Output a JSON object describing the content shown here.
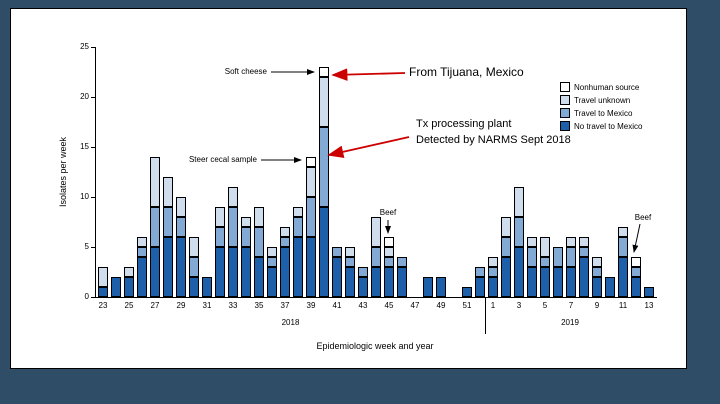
{
  "theme": {
    "outer_background": "#2f4d66",
    "slide_background": "#ffffff",
    "accent_red": "#cc0000",
    "axis_color": "#000000"
  },
  "chart_data": {
    "type": "bar",
    "stacked": true,
    "stack_order": "bottom-to-top",
    "title": "",
    "ylabel": "Isolates per week",
    "xlabel": "Epidemiologic week and year",
    "ylim": [
      0,
      25
    ],
    "yticks": [
      0,
      5,
      10,
      15,
      20,
      25
    ],
    "grid": false,
    "legend_position": "top-right",
    "categories": [
      "23",
      "24",
      "25",
      "26",
      "27",
      "28",
      "29",
      "30",
      "31",
      "32",
      "33",
      "34",
      "35",
      "36",
      "37",
      "38",
      "39",
      "40",
      "41",
      "42",
      "43",
      "44",
      "45",
      "46",
      "47",
      "48",
      "49",
      "50",
      "51",
      "52",
      "1",
      "2",
      "3",
      "4",
      "5",
      "6",
      "7",
      "8",
      "9",
      "10",
      "11",
      "12",
      "13"
    ],
    "year_groups": [
      {
        "label": "2018",
        "from": 0,
        "to": 29
      },
      {
        "label": "2019",
        "from": 30,
        "to": 42
      }
    ],
    "series": [
      {
        "name": "No travel to Mexico",
        "color": "#1d5fa9",
        "values": [
          1,
          2,
          2,
          4,
          5,
          6,
          6,
          2,
          2,
          5,
          5,
          5,
          4,
          3,
          5,
          6,
          6,
          9,
          4,
          3,
          2,
          3,
          3,
          3,
          0,
          2,
          2,
          0,
          1,
          2,
          2,
          4,
          5,
          3,
          3,
          3,
          3,
          4,
          2,
          2,
          4,
          2,
          1
        ]
      },
      {
        "name": "Travel to Mexico",
        "color": "#83aad5",
        "values": [
          0,
          0,
          0,
          1,
          4,
          3,
          2,
          2,
          0,
          2,
          4,
          2,
          3,
          1,
          1,
          2,
          4,
          8,
          1,
          1,
          1,
          2,
          1,
          1,
          0,
          0,
          0,
          0,
          0,
          1,
          1,
          2,
          3,
          2,
          1,
          2,
          2,
          1,
          1,
          0,
          2,
          1,
          0
        ]
      },
      {
        "name": "Travel unknown",
        "color": "#cfdded",
        "values": [
          2,
          0,
          1,
          1,
          5,
          3,
          2,
          2,
          0,
          2,
          2,
          1,
          2,
          1,
          1,
          1,
          3,
          5,
          0,
          1,
          0,
          3,
          1,
          0,
          0,
          0,
          0,
          0,
          0,
          0,
          1,
          2,
          3,
          1,
          2,
          0,
          1,
          1,
          1,
          0,
          1,
          0,
          0
        ]
      },
      {
        "name": "Nonhuman source",
        "color": "#ffffff",
        "values": [
          0,
          0,
          0,
          0,
          0,
          0,
          0,
          0,
          0,
          0,
          0,
          0,
          0,
          0,
          0,
          0,
          1,
          1,
          0,
          0,
          0,
          0,
          1,
          0,
          0,
          0,
          0,
          0,
          0,
          0,
          0,
          0,
          0,
          0,
          0,
          0,
          0,
          0,
          0,
          0,
          0,
          1,
          0
        ]
      }
    ],
    "legend": [
      {
        "label": "Nonhuman source",
        "color": "#ffffff"
      },
      {
        "label": "Travel unknown",
        "color": "#cfdded"
      },
      {
        "label": "Travel to Mexico",
        "color": "#83aad5"
      },
      {
        "label": "No travel to Mexico",
        "color": "#1d5fa9"
      }
    ]
  },
  "annotations": {
    "soft_cheese": "Soft cheese",
    "steer_cecal": "Steer cecal sample",
    "tijuana": "From Tijuana, Mexico",
    "tx_line1": "Tx processing plant",
    "tx_line2": "Detected by NARMS Sept 2018",
    "beef_2018": "Beef",
    "beef_2019": "Beef"
  }
}
